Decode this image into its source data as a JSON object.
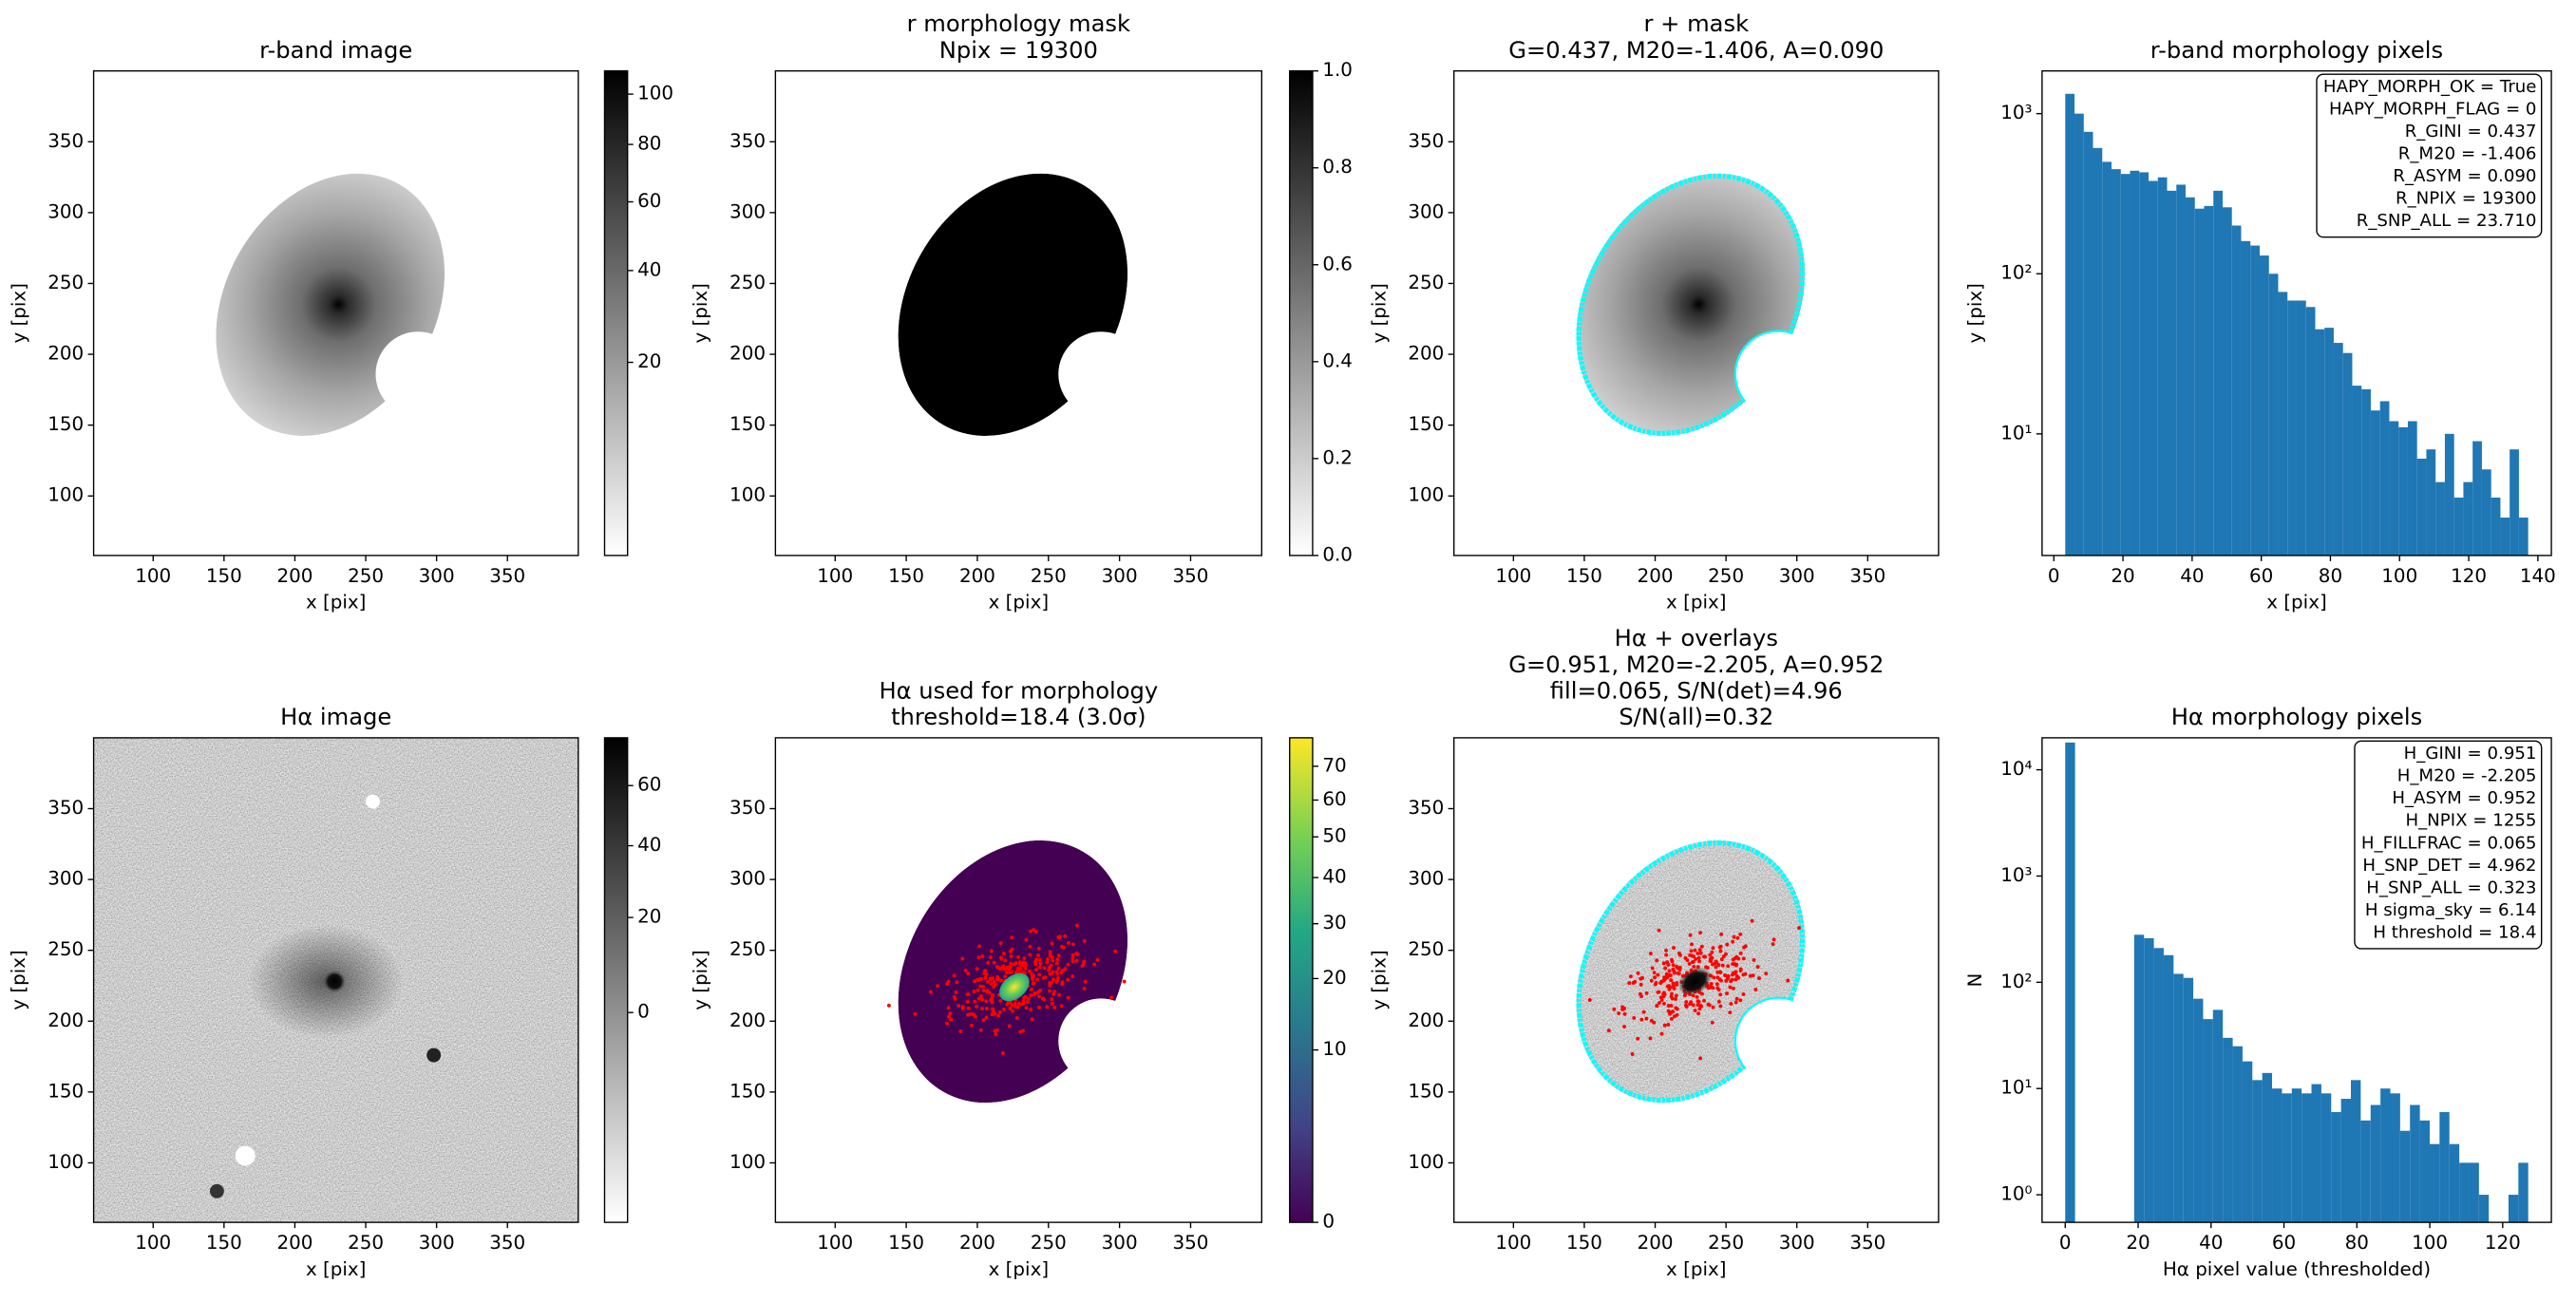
{
  "chart_data": [
    {
      "type": "image",
      "title": [
        "r-band image"
      ],
      "xlabel": "x [pix]",
      "ylabel": "y [pix]",
      "xlim": [
        58,
        400
      ],
      "ylim": [
        58,
        400
      ],
      "xticks": [
        100,
        150,
        200,
        250,
        300,
        350
      ],
      "yticks": [
        100,
        150,
        200,
        250,
        300,
        350
      ],
      "colorbar": {
        "clim": [
          3,
          110
        ],
        "scale": "sqrt",
        "ticks": [
          20,
          40,
          60,
          80,
          100
        ]
      }
    },
    {
      "type": "image",
      "title": [
        "r morphology mask",
        "Npix = 19300"
      ],
      "xlabel": "x [pix]",
      "ylabel": "y [pix]",
      "xlim": [
        58,
        400
      ],
      "ylim": [
        58,
        400
      ],
      "xticks": [
        100,
        150,
        200,
        250,
        300,
        350
      ],
      "yticks": [
        100,
        150,
        200,
        250,
        300,
        350
      ],
      "colorbar": {
        "clim": [
          0,
          1
        ],
        "scale": "linear",
        "ticks": [
          {
            "value": 0,
            "label": "0.0"
          },
          0.2,
          0.4,
          0.6,
          0.8,
          {
            "value": 1,
            "label": "1.0"
          }
        ]
      }
    },
    {
      "type": "image",
      "title": [
        "r + mask",
        "G=0.437, M20=-1.406, A=0.090"
      ],
      "xlabel": "x [pix]",
      "ylabel": "y [pix]",
      "xlim": [
        58,
        400
      ],
      "ylim": [
        58,
        400
      ],
      "xticks": [
        100,
        150,
        200,
        250,
        300,
        350
      ],
      "yticks": [
        100,
        150,
        200,
        250,
        300,
        350
      ]
    },
    {
      "type": "histogram",
      "title": [
        "r-band morphology pixels"
      ],
      "xlabel": "x [pix]",
      "ylabel": "y [pix]",
      "color": "#1f77b4",
      "log_y": true,
      "bins": [
        3.3,
        5.98,
        8.66,
        11.33,
        14.01,
        16.69,
        19.37,
        22.05,
        24.72,
        27.4,
        30.08,
        32.76,
        35.44,
        38.11,
        40.79,
        43.47,
        46.15,
        48.83,
        51.5,
        54.18,
        56.86,
        59.54,
        62.22,
        64.89,
        67.57,
        70.25,
        72.93,
        75.61,
        78.28,
        80.96,
        83.64,
        86.32,
        89,
        91.67,
        94.35,
        97.03,
        99.71,
        102.39,
        105.06,
        107.74,
        110.42,
        113.1,
        115.78,
        118.45,
        121.13,
        123.81,
        126.49,
        129.17,
        131.84,
        134.52,
        137.2
      ],
      "values": [
        1330,
        1000,
        770,
        610,
        500,
        450,
        420,
        440,
        430,
        380,
        400,
        330,
        360,
        300,
        255,
        265,
        330,
        260,
        200,
        160,
        150,
        130,
        100,
        77,
        68,
        68,
        62,
        45,
        46,
        37,
        32,
        20,
        19,
        14,
        16,
        12,
        11,
        12,
        7,
        8,
        5,
        10,
        4,
        5,
        9,
        6,
        4,
        3,
        8,
        3
      ],
      "xlim": [
        -3.4,
        143.9
      ],
      "ylim": [
        1.74,
        1848
      ],
      "xticks": [
        0,
        20,
        40,
        60,
        80,
        100,
        120,
        140
      ],
      "yticks": [
        {
          "value": 10,
          "label": "10¹"
        },
        {
          "value": 100,
          "label": "10²"
        },
        {
          "value": 1000,
          "label": "10³"
        }
      ],
      "annotation": [
        "HAPY_MORPH_OK = True",
        "HAPY_MORPH_FLAG = 0",
        "R_GINI = 0.437",
        "R_M20 = -1.406",
        "R_ASYM = 0.090",
        "R_NPIX = 19300",
        "R_SNP_ALL = 23.710"
      ]
    },
    {
      "type": "image",
      "title": [
        "Hα image"
      ],
      "xlabel": "x [pix]",
      "ylabel": "y [pix]",
      "xlim": [
        58,
        400
      ],
      "ylim": [
        58,
        400
      ],
      "xticks": [
        100,
        150,
        200,
        250,
        300,
        350
      ],
      "yticks": [
        100,
        150,
        200,
        250,
        300,
        350
      ],
      "colorbar": {
        "clim": [
          -18,
          78
        ],
        "scale": "sqrt",
        "ticks": [
          0,
          20,
          40,
          60
        ]
      }
    },
    {
      "type": "image",
      "title": [
        "Hα used for morphology",
        "threshold=18.4 (3.0σ)"
      ],
      "xlabel": "x [pix]",
      "ylabel": "y [pix]",
      "xlim": [
        58,
        400
      ],
      "ylim": [
        58,
        400
      ],
      "xticks": [
        100,
        150,
        200,
        250,
        300,
        350
      ],
      "yticks": [
        100,
        150,
        200,
        250,
        300,
        350
      ],
      "colorbar": {
        "clim": [
          0,
          79
        ],
        "scale": "sqrt",
        "ticks": [
          0,
          10,
          20,
          30,
          40,
          50,
          60,
          70
        ]
      }
    },
    {
      "type": "image",
      "title": [
        "Hα + overlays",
        "G=0.951, M20=-2.205, A=0.952",
        "fill=0.065, S/N(det)=4.96",
        "S/N(all)=0.32"
      ],
      "xlabel": "x [pix]",
      "ylabel": "y [pix]",
      "xlim": [
        58,
        400
      ],
      "ylim": [
        58,
        400
      ],
      "xticks": [
        100,
        150,
        200,
        250,
        300,
        350
      ],
      "yticks": [
        100,
        150,
        200,
        250,
        300,
        350
      ]
    },
    {
      "type": "histogram",
      "title": [
        "Hα morphology pixels"
      ],
      "xlabel": "Hα pixel value (thresholded)",
      "ylabel": "N",
      "color": "#1f77b4",
      "log_y": true,
      "bins": [
        0,
        2.7,
        5.4,
        8.11,
        10.81,
        13.51,
        16.21,
        18.91,
        21.62,
        24.32,
        27.02,
        29.72,
        32.43,
        35.13,
        37.83,
        40.53,
        43.23,
        45.94,
        48.64,
        51.34,
        54.04,
        56.74,
        59.45,
        62.15,
        64.85,
        67.55,
        70.26,
        72.96,
        75.66,
        78.36,
        81.06,
        83.77,
        86.47,
        89.17,
        91.87,
        94.57,
        97.28,
        99.98,
        102.68,
        105.38,
        108.09,
        110.79,
        113.49,
        116.19,
        118.89,
        121.6,
        124.3,
        127
      ],
      "values": [
        18045,
        0,
        0,
        0,
        0,
        0,
        0,
        280,
        260,
        210,
        180,
        120,
        110,
        70,
        45,
        55,
        30,
        25,
        18,
        12,
        14,
        10,
        9,
        10,
        9,
        11,
        9,
        6,
        8,
        12,
        5,
        7,
        10,
        9,
        4,
        7,
        5,
        3,
        6,
        3,
        2,
        2,
        1,
        0,
        0,
        1,
        2
      ],
      "xlim": [
        -6.35,
        133.35
      ],
      "ylim": [
        0.55,
        20000
      ],
      "xticks": [
        0,
        20,
        40,
        60,
        80,
        100,
        120
      ],
      "yticks": [
        {
          "value": 1,
          "label": "10⁰"
        },
        {
          "value": 10,
          "label": "10¹"
        },
        {
          "value": 100,
          "label": "10²"
        },
        {
          "value": 1000,
          "label": "10³"
        },
        {
          "value": 10000,
          "label": "10⁴"
        }
      ],
      "annotation": [
        "H_GINI = 0.951",
        "H_M20 = -2.205",
        "H_ASYM = 0.952",
        "H_NPIX = 1255",
        "H_FILLFRAC = 0.065",
        "H_SNP_DET = 4.962",
        "H_SNP_ALL = 0.323",
        "H sigma_sky = 6.14",
        "H threshold = 18.4"
      ]
    }
  ]
}
